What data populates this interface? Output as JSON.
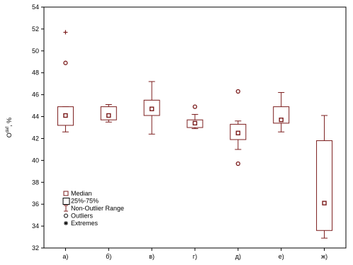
{
  "chart_data": {
    "type": "box",
    "ylabel": "O",
    "ylabel_sup": "daf",
    "ylabel_unit": ", %",
    "ylim": [
      32,
      54
    ],
    "yticks": [
      32,
      34,
      36,
      38,
      40,
      42,
      44,
      46,
      48,
      50,
      52,
      54
    ],
    "grid": false,
    "categories": [
      "а)",
      "б)",
      "в)",
      "г)",
      "д)",
      "е)",
      "ж)"
    ],
    "boxes": [
      {
        "category": "а)",
        "median": 44.1,
        "q1": 43.2,
        "q3": 44.9,
        "whisker_low": 42.6,
        "whisker_high": 44.9,
        "outliers": [
          48.9
        ],
        "extremes": [
          51.7
        ]
      },
      {
        "category": "б)",
        "median": 44.1,
        "q1": 43.7,
        "q3": 44.9,
        "whisker_low": 43.5,
        "whisker_high": 45.1,
        "outliers": [],
        "extremes": []
      },
      {
        "category": "в)",
        "median": 44.7,
        "q1": 44.1,
        "q3": 45.5,
        "whisker_low": 42.4,
        "whisker_high": 47.2,
        "outliers": [],
        "extremes": []
      },
      {
        "category": "г)",
        "median": 43.4,
        "q1": 43.0,
        "q3": 43.7,
        "whisker_low": 42.9,
        "whisker_high": 44.2,
        "outliers": [
          44.9
        ],
        "extremes": []
      },
      {
        "category": "д)",
        "median": 42.5,
        "q1": 41.9,
        "q3": 43.3,
        "whisker_low": 41.0,
        "whisker_high": 43.6,
        "outliers": [
          46.3,
          39.7
        ],
        "extremes": []
      },
      {
        "category": "е)",
        "median": 43.7,
        "q1": 43.4,
        "q3": 44.9,
        "whisker_low": 42.6,
        "whisker_high": 46.2,
        "outliers": [],
        "extremes": []
      },
      {
        "category": "ж)",
        "median": 36.1,
        "q1": 33.6,
        "q3": 41.8,
        "whisker_low": 32.9,
        "whisker_high": 44.1,
        "outliers": [],
        "extremes": []
      }
    ],
    "legend": {
      "placement": "bottom-left",
      "items": [
        {
          "symbol": "median",
          "label": "Median"
        },
        {
          "symbol": "box",
          "label": "25%-75%"
        },
        {
          "symbol": "whisker",
          "label": "Non-Outlier Range"
        },
        {
          "symbol": "outlier",
          "label": "Outliers"
        },
        {
          "symbol": "extreme",
          "label": "Extremes"
        }
      ]
    },
    "colors": {
      "series": "#7b1c1c",
      "frame": "#000000",
      "background": "#ffffff"
    }
  }
}
